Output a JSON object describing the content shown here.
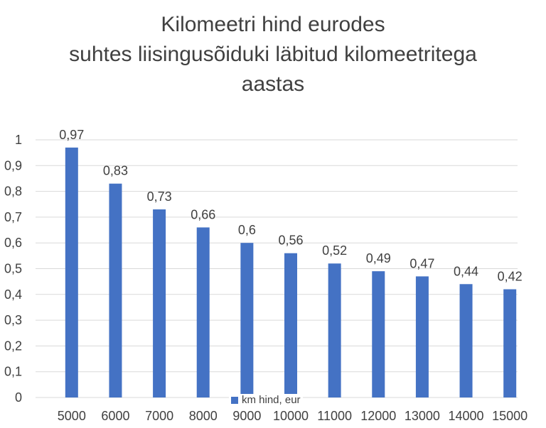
{
  "chart_data": {
    "type": "bar",
    "title_lines": [
      "Kilomeetri hind eurodes",
      "suhtes liisingusõiduki läbitud kilomeetritega",
      "aastas"
    ],
    "categories": [
      "5000",
      "6000",
      "7000",
      "8000",
      "9000",
      "10000",
      "11000",
      "12000",
      "13000",
      "14000",
      "15000"
    ],
    "series": [
      {
        "name": "km hind, eur",
        "values": [
          0.97,
          0.83,
          0.73,
          0.66,
          0.6,
          0.56,
          0.52,
          0.49,
          0.47,
          0.44,
          0.42
        ]
      }
    ],
    "data_labels": [
      "0,97",
      "0,83",
      "0,73",
      "0,66",
      "0,6",
      "0,56",
      "0,52",
      "0,49",
      "0,47",
      "0,44",
      "0,42"
    ],
    "y_ticks": [
      0,
      0.1,
      0.2,
      0.3,
      0.4,
      0.5,
      0.6,
      0.7,
      0.8,
      0.9,
      1
    ],
    "y_tick_labels": [
      "0",
      "0,1",
      "0,2",
      "0,3",
      "0,4",
      "0,5",
      "0,6",
      "0,7",
      "0,8",
      "0,9",
      "1"
    ],
    "ylim": [
      0,
      1
    ],
    "grid": true,
    "legend_position": "bottom",
    "colors": {
      "bar": "#4472C4",
      "grid": "#d9d9d9",
      "text": "#404040"
    }
  }
}
